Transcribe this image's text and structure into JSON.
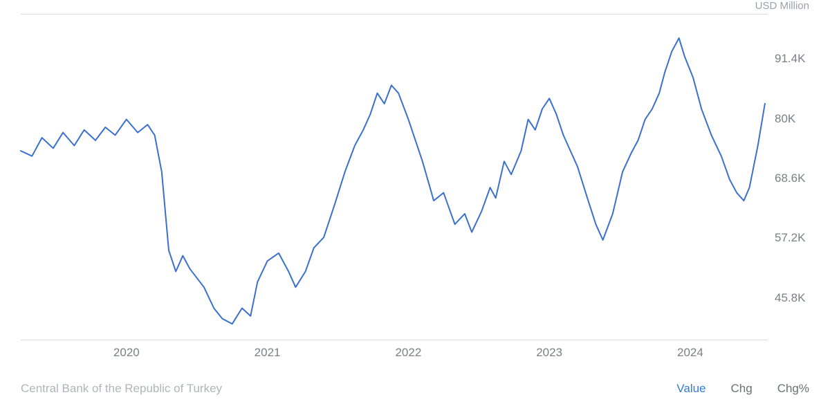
{
  "chart": {
    "type": "line",
    "unit_label": "USD Million",
    "source_label": "Central Bank of the Republic of Turkey",
    "line_color": "#3a6fcf",
    "line_width": 2,
    "border_color": "#d9dde2",
    "background_color": "#ffffff",
    "axis_text_color": "#7a7f86",
    "source_text_color": "#b0b5bb",
    "active_tab_color": "#2f7ed8",
    "x_range": [
      2019.25,
      2024.55
    ],
    "y_range": [
      38,
      100
    ],
    "y_ticks": [
      {
        "value": 45.8,
        "label": "45.8K"
      },
      {
        "value": 57.2,
        "label": "57.2K"
      },
      {
        "value": 68.6,
        "label": "68.6K"
      },
      {
        "value": 80.0,
        "label": "80K"
      },
      {
        "value": 91.4,
        "label": "91.4K"
      }
    ],
    "x_ticks": [
      {
        "value": 2020,
        "label": "2020"
      },
      {
        "value": 2021,
        "label": "2021"
      },
      {
        "value": 2022,
        "label": "2022"
      },
      {
        "value": 2023,
        "label": "2023"
      },
      {
        "value": 2024,
        "label": "2024"
      }
    ],
    "series": [
      {
        "x": 2019.25,
        "y": 74.0
      },
      {
        "x": 2019.33,
        "y": 73.0
      },
      {
        "x": 2019.4,
        "y": 76.5
      },
      {
        "x": 2019.48,
        "y": 74.5
      },
      {
        "x": 2019.55,
        "y": 77.5
      },
      {
        "x": 2019.63,
        "y": 75.0
      },
      {
        "x": 2019.7,
        "y": 78.0
      },
      {
        "x": 2019.78,
        "y": 76.0
      },
      {
        "x": 2019.85,
        "y": 78.5
      },
      {
        "x": 2019.92,
        "y": 77.0
      },
      {
        "x": 2020.0,
        "y": 80.0
      },
      {
        "x": 2020.08,
        "y": 77.5
      },
      {
        "x": 2020.15,
        "y": 79.0
      },
      {
        "x": 2020.2,
        "y": 77.0
      },
      {
        "x": 2020.25,
        "y": 70.0
      },
      {
        "x": 2020.3,
        "y": 55.0
      },
      {
        "x": 2020.35,
        "y": 51.0
      },
      {
        "x": 2020.4,
        "y": 54.0
      },
      {
        "x": 2020.45,
        "y": 51.5
      },
      {
        "x": 2020.55,
        "y": 48.0
      },
      {
        "x": 2020.62,
        "y": 44.0
      },
      {
        "x": 2020.68,
        "y": 42.0
      },
      {
        "x": 2020.75,
        "y": 41.0
      },
      {
        "x": 2020.82,
        "y": 44.0
      },
      {
        "x": 2020.88,
        "y": 42.5
      },
      {
        "x": 2020.93,
        "y": 49.0
      },
      {
        "x": 2021.0,
        "y": 53.0
      },
      {
        "x": 2021.08,
        "y": 54.5
      },
      {
        "x": 2021.15,
        "y": 51.0
      },
      {
        "x": 2021.2,
        "y": 48.0
      },
      {
        "x": 2021.27,
        "y": 51.0
      },
      {
        "x": 2021.33,
        "y": 55.5
      },
      {
        "x": 2021.4,
        "y": 57.5
      },
      {
        "x": 2021.48,
        "y": 64.0
      },
      {
        "x": 2021.55,
        "y": 70.0
      },
      {
        "x": 2021.62,
        "y": 75.0
      },
      {
        "x": 2021.68,
        "y": 78.0
      },
      {
        "x": 2021.73,
        "y": 81.0
      },
      {
        "x": 2021.78,
        "y": 85.0
      },
      {
        "x": 2021.83,
        "y": 83.0
      },
      {
        "x": 2021.88,
        "y": 86.5
      },
      {
        "x": 2021.93,
        "y": 85.0
      },
      {
        "x": 2022.0,
        "y": 80.0
      },
      {
        "x": 2022.1,
        "y": 72.0
      },
      {
        "x": 2022.18,
        "y": 64.5
      },
      {
        "x": 2022.25,
        "y": 66.0
      },
      {
        "x": 2022.33,
        "y": 60.0
      },
      {
        "x": 2022.4,
        "y": 62.0
      },
      {
        "x": 2022.45,
        "y": 58.5
      },
      {
        "x": 2022.52,
        "y": 62.5
      },
      {
        "x": 2022.58,
        "y": 67.0
      },
      {
        "x": 2022.62,
        "y": 65.0
      },
      {
        "x": 2022.68,
        "y": 72.0
      },
      {
        "x": 2022.73,
        "y": 69.5
      },
      {
        "x": 2022.8,
        "y": 74.0
      },
      {
        "x": 2022.85,
        "y": 80.0
      },
      {
        "x": 2022.9,
        "y": 78.0
      },
      {
        "x": 2022.95,
        "y": 82.0
      },
      {
        "x": 2023.0,
        "y": 84.0
      },
      {
        "x": 2023.05,
        "y": 81.0
      },
      {
        "x": 2023.1,
        "y": 77.0
      },
      {
        "x": 2023.15,
        "y": 74.0
      },
      {
        "x": 2023.2,
        "y": 71.0
      },
      {
        "x": 2023.27,
        "y": 65.0
      },
      {
        "x": 2023.33,
        "y": 60.0
      },
      {
        "x": 2023.38,
        "y": 57.0
      },
      {
        "x": 2023.45,
        "y": 62.0
      },
      {
        "x": 2023.52,
        "y": 70.0
      },
      {
        "x": 2023.58,
        "y": 73.5
      },
      {
        "x": 2023.63,
        "y": 76.0
      },
      {
        "x": 2023.68,
        "y": 80.0
      },
      {
        "x": 2023.73,
        "y": 82.0
      },
      {
        "x": 2023.78,
        "y": 85.0
      },
      {
        "x": 2023.82,
        "y": 89.0
      },
      {
        "x": 2023.87,
        "y": 93.0
      },
      {
        "x": 2023.92,
        "y": 95.5
      },
      {
        "x": 2023.96,
        "y": 92.0
      },
      {
        "x": 2024.02,
        "y": 88.0
      },
      {
        "x": 2024.08,
        "y": 82.0
      },
      {
        "x": 2024.15,
        "y": 77.0
      },
      {
        "x": 2024.22,
        "y": 73.0
      },
      {
        "x": 2024.28,
        "y": 68.5
      },
      {
        "x": 2024.33,
        "y": 66.0
      },
      {
        "x": 2024.38,
        "y": 64.5
      },
      {
        "x": 2024.42,
        "y": 67.0
      },
      {
        "x": 2024.48,
        "y": 75.0
      },
      {
        "x": 2024.53,
        "y": 83.0
      }
    ]
  },
  "tabs": [
    {
      "label": "Value",
      "active": true
    },
    {
      "label": "Chg",
      "active": false
    },
    {
      "label": "Chg%",
      "active": false
    }
  ]
}
